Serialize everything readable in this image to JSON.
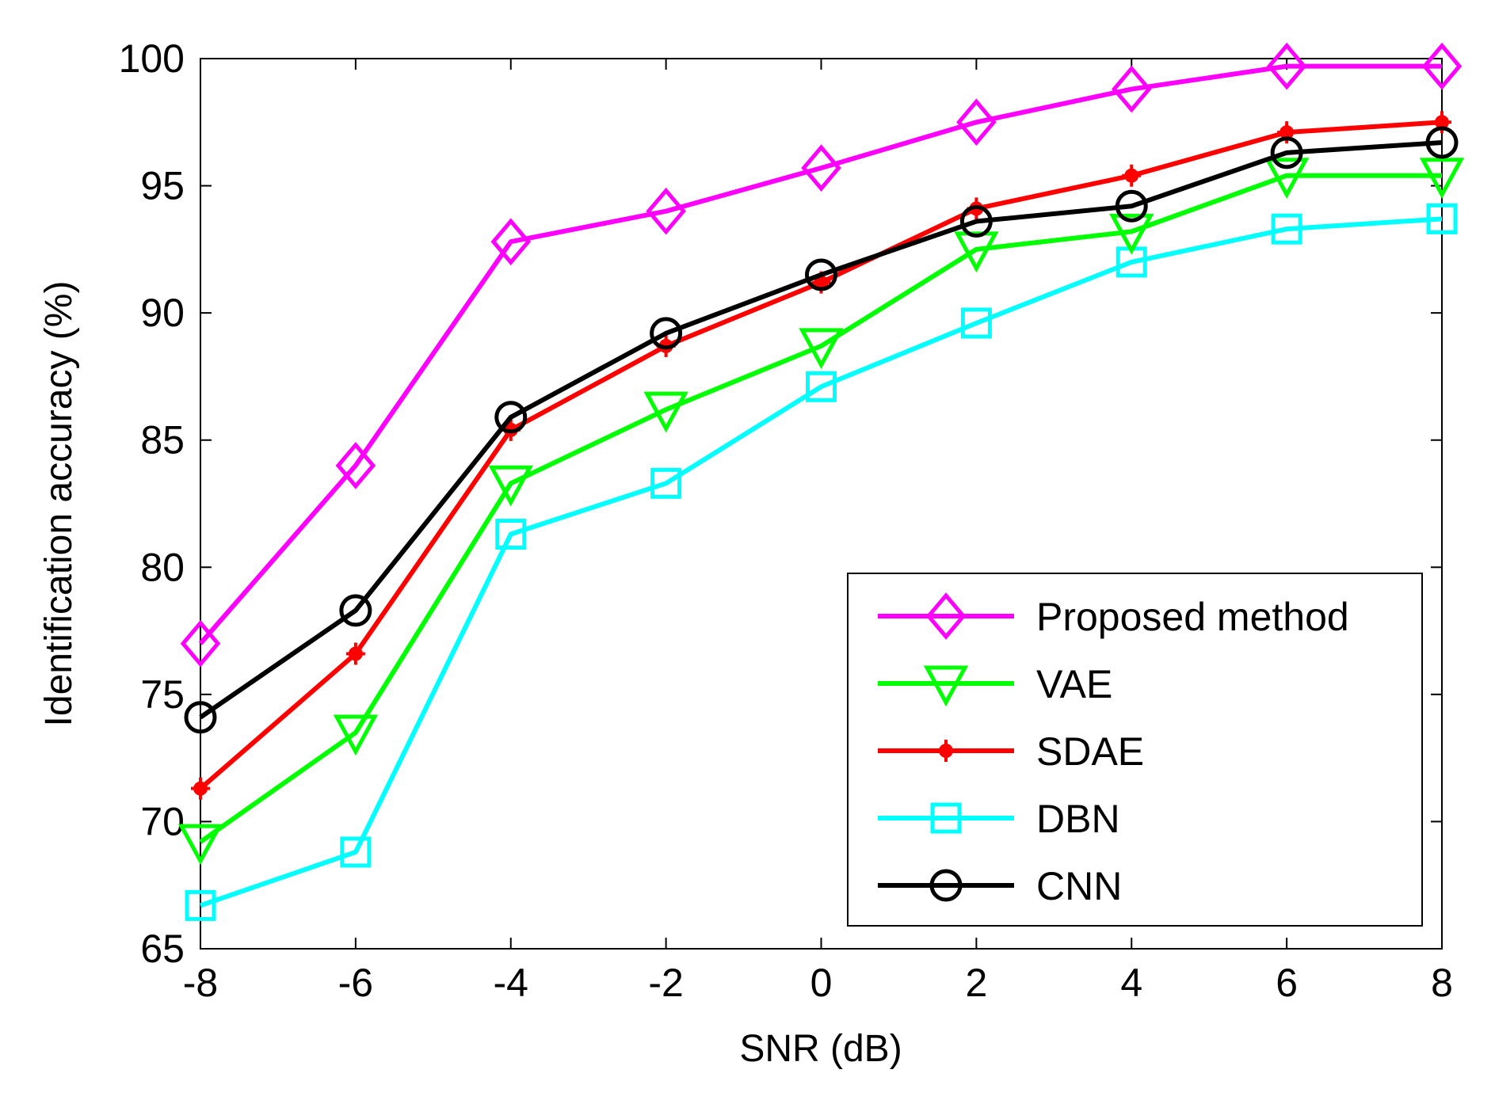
{
  "chart_data": {
    "type": "line",
    "title": "",
    "xlabel": "SNR (dB)",
    "ylabel": "Identification accuracy (%)",
    "x": [
      -8,
      -6,
      -4,
      -2,
      0,
      2,
      4,
      6,
      8
    ],
    "xlim": [
      -8,
      8
    ],
    "ylim": [
      65,
      100
    ],
    "xticks": [
      -8,
      -6,
      -4,
      -2,
      0,
      2,
      4,
      6,
      8
    ],
    "yticks": [
      65,
      70,
      75,
      80,
      85,
      90,
      95,
      100
    ],
    "grid": false,
    "legend_position": "bottom-right",
    "series": [
      {
        "name": "Proposed method",
        "color": "#ff00ff",
        "marker": "diamond",
        "values": [
          77.0,
          84.0,
          92.8,
          94.0,
          95.7,
          97.5,
          98.8,
          99.7,
          99.7
        ]
      },
      {
        "name": "VAE",
        "color": "#00ff00",
        "marker": "triangle-down",
        "values": [
          69.2,
          73.5,
          83.3,
          86.2,
          88.7,
          92.5,
          93.2,
          95.4,
          95.4
        ]
      },
      {
        "name": "SDAE",
        "color": "#ff0000",
        "marker": "star",
        "values": [
          71.3,
          76.6,
          85.4,
          88.7,
          91.2,
          94.1,
          95.4,
          97.1,
          97.5
        ]
      },
      {
        "name": "DBN",
        "color": "#00ffff",
        "marker": "square",
        "values": [
          66.7,
          68.8,
          81.3,
          83.3,
          87.1,
          89.6,
          92.0,
          93.3,
          93.7
        ]
      },
      {
        "name": "CNN",
        "color": "#000000",
        "marker": "circle",
        "values": [
          74.1,
          78.3,
          85.9,
          89.2,
          91.5,
          93.6,
          94.2,
          96.3,
          96.7
        ]
      }
    ]
  }
}
